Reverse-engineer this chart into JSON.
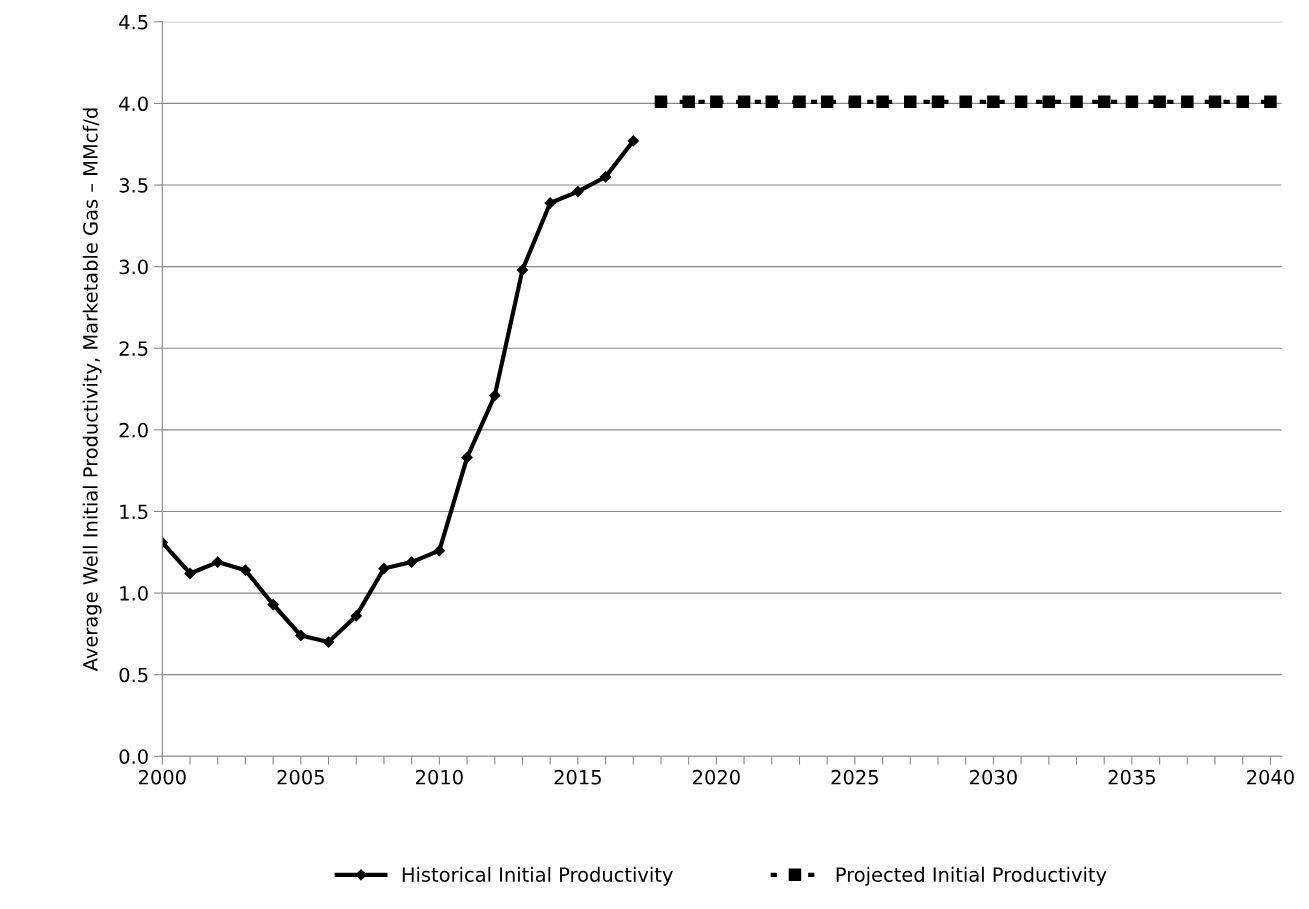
{
  "chart_data": {
    "type": "line",
    "ylabel": "Average Well Initial Productivity, Marketable Gas – MMcf/d",
    "xlim": [
      2000,
      2040.4
    ],
    "ylim": [
      0,
      4.5
    ],
    "xticks": [
      2000,
      {
        "value": 2001,
        "label": null
      },
      {
        "value": 2002,
        "label": null
      },
      {
        "value": 2003,
        "label": null
      },
      {
        "value": 2004,
        "label": null
      },
      2005,
      {
        "value": 2006,
        "label": null
      },
      {
        "value": 2007,
        "label": null
      },
      {
        "value": 2008,
        "label": null
      },
      {
        "value": 2009,
        "label": null
      },
      2010,
      {
        "value": 2011,
        "label": null
      },
      {
        "value": 2012,
        "label": null
      },
      {
        "value": 2013,
        "label": null
      },
      {
        "value": 2014,
        "label": null
      },
      2015,
      {
        "value": 2016,
        "label": null
      },
      {
        "value": 2017,
        "label": null
      },
      {
        "value": 2018,
        "label": null
      },
      {
        "value": 2019,
        "label": null
      },
      2020,
      {
        "value": 2021,
        "label": null
      },
      {
        "value": 2022,
        "label": null
      },
      {
        "value": 2023,
        "label": null
      },
      {
        "value": 2024,
        "label": null
      },
      2025,
      {
        "value": 2026,
        "label": null
      },
      {
        "value": 2027,
        "label": null
      },
      {
        "value": 2028,
        "label": null
      },
      {
        "value": 2029,
        "label": null
      },
      2030,
      {
        "value": 2031,
        "label": null
      },
      {
        "value": 2032,
        "label": null
      },
      {
        "value": 2033,
        "label": null
      },
      {
        "value": 2034,
        "label": null
      },
      2035,
      {
        "value": 2036,
        "label": null
      },
      {
        "value": 2037,
        "label": null
      },
      {
        "value": 2038,
        "label": null
      },
      {
        "value": 2039,
        "label": null
      },
      2040
    ],
    "yticks": [
      {
        "value": 0,
        "label": "0.0"
      },
      {
        "value": 0.5,
        "label": "0.5"
      },
      {
        "value": 1,
        "label": "1.0"
      },
      {
        "value": 1.5,
        "label": "1.5"
      },
      {
        "value": 2,
        "label": "2.0"
      },
      {
        "value": 2.5,
        "label": "2.5"
      },
      {
        "value": 3,
        "label": "3.0"
      },
      {
        "value": 3.5,
        "label": "3.5"
      },
      {
        "value": 4,
        "label": "4.0"
      },
      {
        "value": 4.5,
        "label": "4.5"
      }
    ],
    "grid": "y",
    "legend": "bottom",
    "series": [
      {
        "name": "Historical Initial Productivity",
        "color": "#000000",
        "marker": "diamond",
        "line_style": "solid",
        "x": [
          2000,
          2001,
          2002,
          2003,
          2004,
          2005,
          2006,
          2007,
          2008,
          2009,
          2010,
          2011,
          2012,
          2013,
          2014,
          2015,
          2016,
          2017
        ],
        "values": [
          1.31,
          1.12,
          1.19,
          1.14,
          0.93,
          0.74,
          0.7,
          0.86,
          1.15,
          1.19,
          1.26,
          1.83,
          2.21,
          2.98,
          3.39,
          3.46,
          3.55,
          3.77
        ]
      },
      {
        "name": "Projected Initial Productivity",
        "color": "#000000",
        "marker": "square",
        "line_style": "dashed",
        "x": [
          2018,
          2019,
          2020,
          2021,
          2022,
          2023,
          2024,
          2025,
          2026,
          2027,
          2028,
          2029,
          2030,
          2031,
          2032,
          2033,
          2034,
          2035,
          2036,
          2037,
          2038,
          2039,
          2040
        ],
        "values": [
          4.01,
          4.01,
          4.01,
          4.01,
          4.01,
          4.01,
          4.01,
          4.01,
          4.01,
          4.01,
          4.01,
          4.01,
          4.01,
          4.01,
          4.01,
          4.01,
          4.01,
          4.01,
          4.01,
          4.01,
          4.01,
          4.01,
          4.01
        ]
      }
    ]
  }
}
